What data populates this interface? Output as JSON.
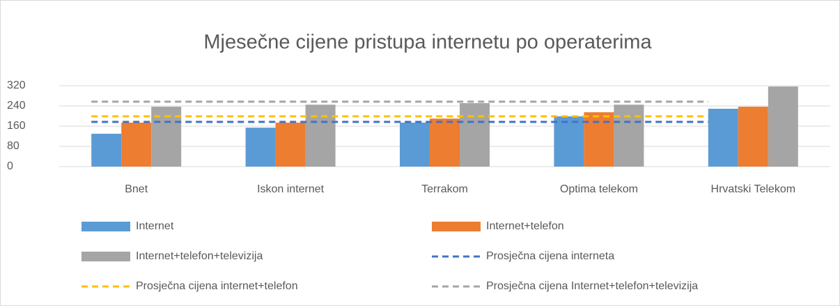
{
  "chart_data": {
    "type": "bar",
    "title": "Mjesečne cijene pristupa internetu po operaterima",
    "categories": [
      "Bnet",
      "Iskon internet",
      "Terrakom",
      "Optima telekom",
      "Hrvatski Telekom"
    ],
    "series": [
      {
        "name": "Internet",
        "color": "#5b9bd5",
        "type": "bar",
        "values": [
          130,
          154,
          174,
          199,
          229
        ]
      },
      {
        "name": "Internet+telefon",
        "color": "#ed7d31",
        "type": "bar",
        "values": [
          174,
          174,
          190,
          215,
          237
        ]
      },
      {
        "name": "Internet+telefon+televizija",
        "color": "#a5a5a5",
        "type": "bar",
        "values": [
          237,
          245,
          251,
          245,
          317
        ]
      },
      {
        "name": "Prosječna cijena interneta",
        "color": "#4472c4",
        "type": "line",
        "dashed": true,
        "values": [
          177,
          177,
          177,
          177,
          177
        ]
      },
      {
        "name": "Prosječna cijena internet+telefon",
        "color": "#ffc000",
        "type": "line",
        "dashed": true,
        "values": [
          199,
          199,
          199,
          199,
          199
        ]
      },
      {
        "name": "Prosječna cijena Internet+telefon+televizija",
        "color": "#a5a5a5",
        "type": "line",
        "dashed": true,
        "values": [
          257,
          257,
          257,
          257,
          257
        ]
      }
    ],
    "ylim": [
      0,
      320
    ],
    "yticks": [
      0,
      80,
      160,
      240,
      320
    ],
    "grid": true,
    "legend": "bottom"
  }
}
